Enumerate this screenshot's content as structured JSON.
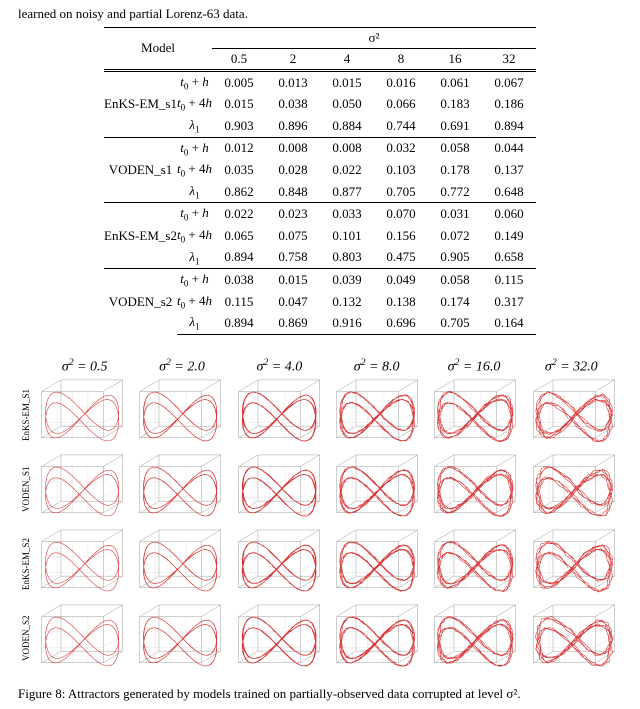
{
  "top_line": "learned on noisy and partial Lorenz-63 data.",
  "table": {
    "model_header": "Model",
    "sigma_header": "σ²",
    "sigma_cols": [
      "0.5",
      "2",
      "4",
      "8",
      "16",
      "32"
    ],
    "metrics": [
      "t₀ + h",
      "t₀ + 4h",
      "λ₁"
    ],
    "rows": [
      {
        "model": "EnKS-EM_s1",
        "vals": [
          [
            "0.005",
            "0.013",
            "0.015",
            "0.016",
            "0.061",
            "0.067"
          ],
          [
            "0.015",
            "0.038",
            "0.050",
            "0.066",
            "0.183",
            "0.186"
          ],
          [
            "0.903",
            "0.896",
            "0.884",
            "0.744",
            "0.691",
            "0.894"
          ]
        ]
      },
      {
        "model": "VODEN_s1",
        "vals": [
          [
            "0.012",
            "0.008",
            "0.008",
            "0.032",
            "0.058",
            "0.044"
          ],
          [
            "0.035",
            "0.028",
            "0.022",
            "0.103",
            "0.178",
            "0.137"
          ],
          [
            "0.862",
            "0.848",
            "0.877",
            "0.705",
            "0.772",
            "0.648"
          ]
        ]
      },
      {
        "model": "EnKS-EM_s2",
        "vals": [
          [
            "0.022",
            "0.023",
            "0.033",
            "0.070",
            "0.031",
            "0.060"
          ],
          [
            "0.065",
            "0.075",
            "0.101",
            "0.156",
            "0.072",
            "0.149"
          ],
          [
            "0.894",
            "0.758",
            "0.803",
            "0.475",
            "0.905",
            "0.658"
          ]
        ]
      },
      {
        "model": "VODEN_s2",
        "vals": [
          [
            "0.038",
            "0.015",
            "0.039",
            "0.049",
            "0.058",
            "0.115"
          ],
          [
            "0.115",
            "0.047",
            "0.132",
            "0.138",
            "0.174",
            "0.317"
          ],
          [
            "0.894",
            "0.869",
            "0.916",
            "0.696",
            "0.705",
            "0.164"
          ]
        ]
      }
    ]
  },
  "grid": {
    "sigma_labels": [
      "σ² = 0.5",
      "σ² = 2.0",
      "σ² = 4.0",
      "σ² = 8.0",
      "σ² = 16.0",
      "σ² = 32.0"
    ],
    "row_labels": [
      "EnKS-EM_S1",
      "VODEN_S1",
      "EnKS-EM_S2",
      "VODEN_S2"
    ],
    "panel_style": {
      "attractor_color": "#d62728",
      "stroke_width": 0.6,
      "frame_color": "#9a9a9a",
      "grid_color": "#d0d0d0",
      "background": "#ffffff",
      "degradation": [
        1.0,
        0.95,
        0.85,
        0.7,
        0.55,
        0.35
      ],
      "special_sparse": {
        "row": 3,
        "col": 5,
        "density": 0.15
      }
    }
  },
  "caption": "Figure 8: Attractors generated by models trained on partially-observed data corrupted at level σ²."
}
